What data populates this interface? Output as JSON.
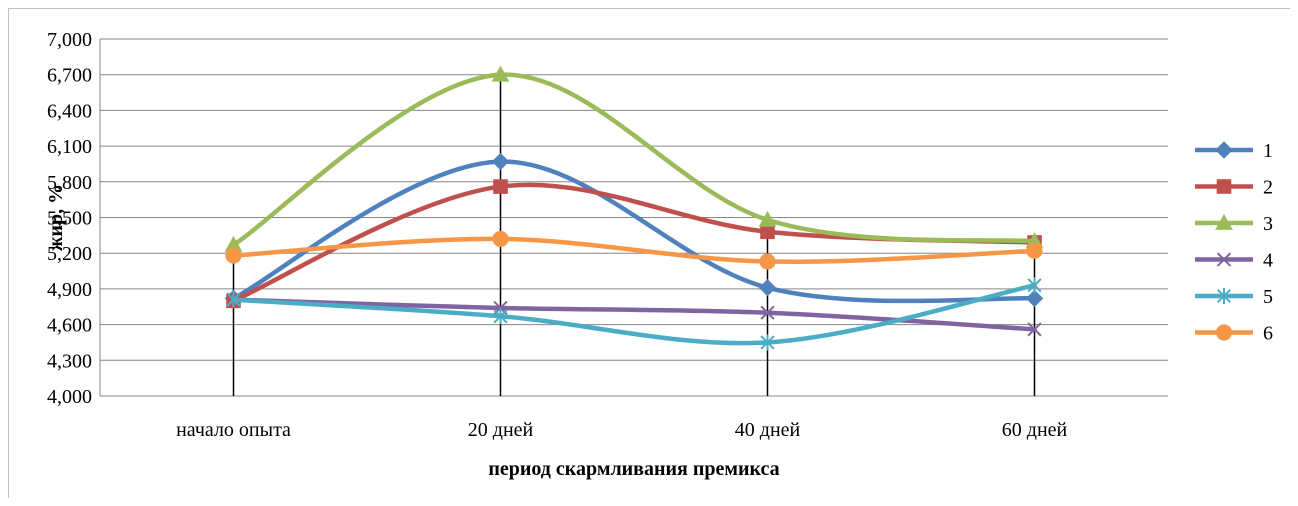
{
  "chart_data": {
    "type": "line",
    "smooth": true,
    "title": "",
    "xlabel": "период скармливания премикса",
    "ylabel": "жир, %",
    "categories": [
      "начало опыта",
      "20 дней",
      "40 дней",
      "60 дней"
    ],
    "ylim": [
      4.0,
      7.0
    ],
    "yticks": [
      "4,000",
      "4,300",
      "4,600",
      "4,900",
      "5,200",
      "5,500",
      "5,800",
      "6,100",
      "6,400",
      "6,700",
      "7,000"
    ],
    "grid": true,
    "legend_position": "right",
    "drop_lines": true,
    "series": [
      {
        "name": "1",
        "color": "#4f81bd",
        "marker": "diamond",
        "values": [
          4.82,
          5.97,
          4.91,
          4.82
        ]
      },
      {
        "name": "2",
        "color": "#c0504d",
        "marker": "square",
        "values": [
          4.8,
          5.76,
          5.38,
          5.29
        ]
      },
      {
        "name": "3",
        "color": "#9bbb59",
        "marker": "triangle",
        "values": [
          5.27,
          6.7,
          5.48,
          5.3
        ]
      },
      {
        "name": "4",
        "color": "#8064a2",
        "marker": "x",
        "values": [
          4.81,
          4.74,
          4.7,
          4.56
        ]
      },
      {
        "name": "5",
        "color": "#4bacc6",
        "marker": "star",
        "values": [
          4.81,
          4.67,
          4.45,
          4.93
        ]
      },
      {
        "name": "6",
        "color": "#f79646",
        "marker": "circle",
        "values": [
          5.18,
          5.32,
          5.13,
          5.22
        ]
      }
    ]
  }
}
